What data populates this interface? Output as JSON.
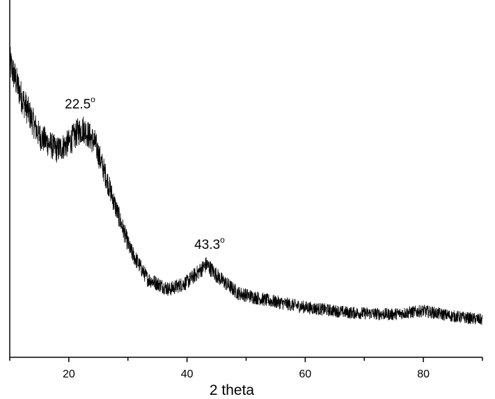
{
  "chart_data": {
    "type": "line",
    "title": "",
    "xlabel": "2 theta",
    "ylabel": "",
    "xlim": [
      10,
      90
    ],
    "ylim": [
      0,
      100
    ],
    "y_tick_labels_shown": false,
    "grid": false,
    "legend": "none",
    "x_ticks": [
      20,
      40,
      60,
      80
    ],
    "x_tick_labels": [
      "20",
      "40",
      "60",
      "80"
    ],
    "x_minor_ticks": [
      10,
      30,
      50,
      70,
      90
    ],
    "series": [
      {
        "color": "#000000",
        "noisy": true,
        "x": [
          10,
          12,
          15,
          18,
          20,
          21.5,
          22.5,
          24.4,
          26.2,
          28,
          30.4,
          33.3,
          37,
          40,
          42,
          43.3,
          45.6,
          48.6,
          53.4,
          60,
          67.5,
          74.6,
          80,
          85,
          90
        ],
        "y": [
          82.5,
          72.8,
          62,
          58,
          60,
          63,
          64,
          60,
          51,
          41.6,
          30,
          22,
          19,
          21,
          24,
          26,
          22,
          18,
          16,
          14,
          12.5,
          12,
          13,
          11.5,
          10.5
        ]
      }
    ],
    "annotations": [
      {
        "text": "22.5",
        "sup": "o",
        "x": 22.5,
        "y": 71
      },
      {
        "text": "43.3",
        "sup": "o",
        "x": 43.3,
        "y": 31
      }
    ]
  }
}
